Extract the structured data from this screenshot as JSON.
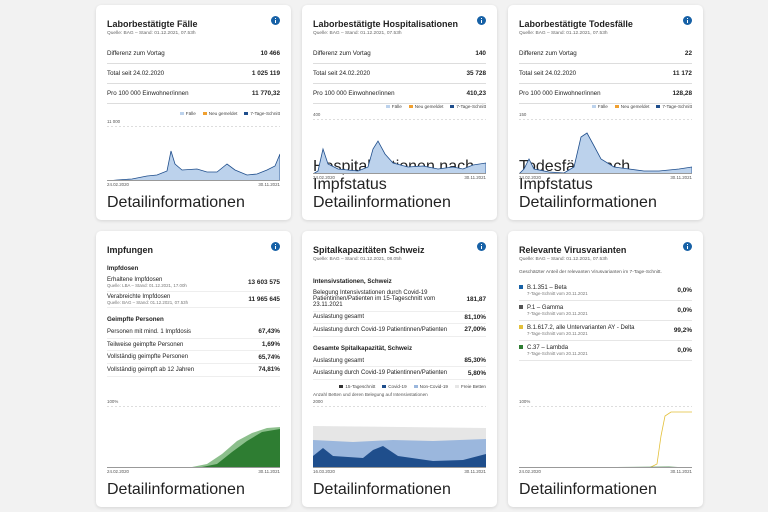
{
  "cards": [
    {
      "title": "Laborbestätigte Fälle",
      "source": "Quelle: BAG – Stand: 01.12.2021, 07.53h",
      "stats": [
        {
          "label": "Differenz zum Vortag",
          "value": "10 466"
        },
        {
          "label": "Total seit 24.02.2020",
          "value": "1 025 119"
        },
        {
          "label": "Pro 100 000 Einwohner/innen",
          "value": "11 770,32"
        }
      ],
      "legend": [
        "Fälle",
        "Neu gemeldet",
        "7-Tage-Schnitt"
      ],
      "chart": {
        "ymax": "11 000",
        "x_start": "24.02.2020",
        "x_end": "30.11.2021"
      },
      "links": [
        "Detailinformationen"
      ]
    },
    {
      "title": "Laborbestätigte Hospitalisationen",
      "source": "Quelle: BAG – Stand: 01.12.2021, 07.53h",
      "stats": [
        {
          "label": "Differenz zum Vortag",
          "value": "140"
        },
        {
          "label": "Total seit 24.02.2020",
          "value": "35 728"
        },
        {
          "label": "Pro 100 000 Einwohner/innen",
          "value": "410,23"
        }
      ],
      "legend": [
        "Fälle",
        "Neu gemeldet",
        "7-Tage-Schnitt"
      ],
      "chart": {
        "ymax": "400",
        "x_start": "24.02.2020",
        "x_end": "30.11.2021"
      },
      "links": [
        "Hospitalisationen nach Impfstatus",
        "Detailinformationen"
      ]
    },
    {
      "title": "Laborbestätigte Todesfälle",
      "source": "Quelle: BAG – Stand: 01.12.2021, 07.53h",
      "stats": [
        {
          "label": "Differenz zum Vortag",
          "value": "22"
        },
        {
          "label": "Total seit 24.02.2020",
          "value": "11 172"
        },
        {
          "label": "Pro 100 000 Einwohner/innen",
          "value": "128,28"
        }
      ],
      "legend": [
        "Fälle",
        "Neu gemeldet",
        "7-Tage-Schnitt"
      ],
      "chart": {
        "ymax": "150",
        "x_start": "24.02.2020",
        "x_end": "30.11.2021"
      },
      "links": [
        "Todesfälle nach Impfstatus",
        "Detailinformationen"
      ]
    },
    {
      "title": "Impfungen",
      "sections": [
        {
          "heading": "Impfdosen",
          "rows": [
            {
              "label": "Erhaltene Impfdosen",
              "note": "Quelle: LBA – Stand: 01.12.2021, 17.00h",
              "value": "13 603 575"
            },
            {
              "label": "Verabreichte Impfdosen",
              "note": "Quelle: BAG – Stand: 01.12.2021, 07.53h",
              "value": "11 965 645"
            }
          ]
        },
        {
          "heading": "Geimpfte Personen",
          "rows": [
            {
              "label": "Personen mit mind. 1 Impfdosis",
              "value": "67,43%"
            },
            {
              "label": "Teilweise geimpfte Personen",
              "value": "1,69%"
            },
            {
              "label": "Vollständig geimpfte Personen",
              "value": "65,74%"
            },
            {
              "label": "Vollständig geimpft ab 12 Jahren",
              "value": "74,81%"
            }
          ]
        }
      ],
      "chart": {
        "ymax": "100%",
        "x_start": "24.02.2020",
        "x_end": "30.11.2021"
      },
      "links": [
        "Detailinformationen"
      ]
    },
    {
      "title": "Spitalkapazitäten Schweiz",
      "source": "Quelle: BAG – Stand: 01.12.2021, 08.05h",
      "sections": [
        {
          "heading": "Intensivstationen, Schweiz",
          "rows": [
            {
              "label": "Belegung Intensivstationen durch Covid-19 Patientinnen/Patienten im 15-Tageschnitt vom 23.11.2021",
              "value": "181,87"
            },
            {
              "label": "Auslastung gesamt",
              "value": "81,10%"
            },
            {
              "label": "Auslastung durch Covid-19 Patientinnen/Patienten",
              "value": "27,00%"
            }
          ]
        },
        {
          "heading": "Gesamte Spitalkapazität, Schweiz",
          "rows": [
            {
              "label": "Auslastung gesamt",
              "value": "85,30%"
            },
            {
              "label": "Auslastung durch Covid-19 Patientinnen/Patienten",
              "value": "5,80%"
            }
          ]
        }
      ],
      "legend": [
        "15-Tageschnitt",
        "Covid-19",
        "Non-Covid-19",
        "Freie Betten"
      ],
      "caption": "Anzahl Betten und deren Belegung auf Intensivstationen",
      "chart": {
        "ymax": "2000",
        "x_start": "16.03.2020",
        "x_end": "30.11.2021"
      },
      "links": [
        "Detailinformationen"
      ]
    },
    {
      "title": "Relevante Virusvarianten",
      "source": "Quelle: BAG – Stand: 01.12.2021, 07.53h",
      "intro": "Geschätzter Anteil der relevanten Virusvarianten im 7-Tage-Schnitt.",
      "variants": [
        {
          "label": "B.1.351 – Beta",
          "note": "7-Tage-Schnitt vom 20.11.2021",
          "value": "0,0%"
        },
        {
          "label": "P.1 – Gamma",
          "note": "7-Tage-Schnitt vom 20.11.2021",
          "value": "0,0%"
        },
        {
          "label": "B.1.617.2, alle Untervarianten AY - Delta",
          "note": "7-Tage-Schnitt vom 20.11.2021",
          "value": "99,2%"
        },
        {
          "label": "C.37 – Lambda",
          "note": "7-Tage-Schnitt vom 20.11.2021",
          "value": "0,0%"
        }
      ],
      "chart": {
        "ymax": "100%",
        "x_start": "24.02.2020",
        "x_end": "30.11.2021"
      },
      "links": [
        "Detailinformationen"
      ]
    }
  ]
}
